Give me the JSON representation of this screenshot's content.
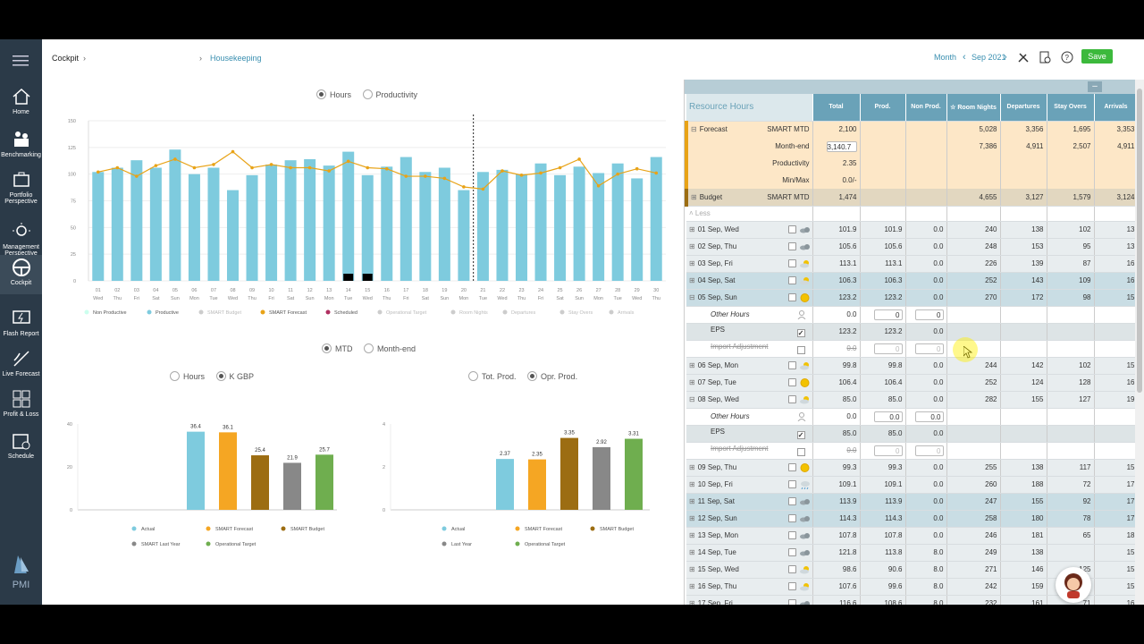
{
  "sidebar": {
    "items": [
      {
        "label": "Home",
        "icon": "home-icon"
      },
      {
        "label": "Benchmarking",
        "icon": "benchmarking-icon"
      },
      {
        "label": "Portfolio Perspective",
        "icon": "portfolio-icon"
      },
      {
        "label": "Management Perspective",
        "icon": "management-icon"
      },
      {
        "label": "Cockpit",
        "icon": "cockpit-icon"
      },
      {
        "label": "Flash Report",
        "icon": "flash-report-icon"
      },
      {
        "label": "Live Forecast",
        "icon": "live-forecast-icon"
      },
      {
        "label": "Profit & Loss",
        "icon": "profit-loss-icon"
      },
      {
        "label": "Schedule",
        "icon": "schedule-icon"
      }
    ],
    "brand": "PMI"
  },
  "breadcrumb": {
    "root": "Cockpit",
    "current": "Housekeeping"
  },
  "toolbar": {
    "period": "Month",
    "date": "Sep 2021",
    "save": "Save"
  },
  "main_chart": {
    "toggle": [
      "Hours",
      "Productivity"
    ],
    "selected": 0
  },
  "mtd_toggle": {
    "options": [
      "MTD",
      "Month-end"
    ],
    "selected": 0
  },
  "left_bar_toggle": {
    "options": [
      "Hours",
      "K GBP"
    ],
    "selected": 1
  },
  "right_bar_toggle": {
    "options": [
      "Tot. Prod.",
      "Opr. Prod."
    ],
    "selected": 1
  },
  "colors": {
    "productive": "#7ecbde",
    "forecast": "#e8a317",
    "scheduled": "#000000",
    "actual": "#7ecbde",
    "smart_forecast": "#f5a623",
    "smart_budget": "#9c6d12",
    "last_year": "#888888",
    "operational": "#6fae4f"
  },
  "chart_data": [
    {
      "type": "bar",
      "x_days": [
        "01",
        "02",
        "03",
        "04",
        "05",
        "06",
        "07",
        "08",
        "09",
        "10",
        "11",
        "12",
        "13",
        "14",
        "15",
        "16",
        "17",
        "18",
        "19",
        "20",
        "21",
        "22",
        "23",
        "24",
        "25",
        "26",
        "27",
        "28",
        "29",
        "30"
      ],
      "x_weekdays": [
        "Wed",
        "Thu",
        "Fri",
        "Sat",
        "Sun",
        "Mon",
        "Tue",
        "Wed",
        "Thu",
        "Fri",
        "Sat",
        "Sun",
        "Mon",
        "Tue",
        "Wed",
        "Thu",
        "Fri",
        "Sat",
        "Sun",
        "Mon",
        "Tue",
        "Wed",
        "Thu",
        "Fri",
        "Sat",
        "Sun",
        "Mon",
        "Tue",
        "Wed",
        "Thu"
      ],
      "yticks": [
        0,
        25,
        50,
        75,
        100,
        125,
        150
      ],
      "ylim": [
        0,
        150
      ],
      "series": [
        {
          "name": "Productive",
          "values": [
            102,
            106,
            113,
            106,
            123,
            100,
            106,
            85,
            99,
            109,
            113,
            114,
            108,
            121,
            99,
            107,
            116,
            102,
            106,
            85,
            102,
            104,
            100,
            110,
            99,
            107,
            101,
            110,
            96,
            116
          ]
        },
        {
          "name": "SMART Forecast",
          "values": [
            102,
            106,
            98,
            108,
            114,
            106,
            109,
            121,
            106,
            109,
            106,
            106,
            103,
            112,
            106,
            105,
            98,
            98,
            96,
            88,
            86,
            103,
            99,
            101,
            106,
            114,
            89,
            100,
            105,
            101
          ]
        },
        {
          "name": "Scheduled",
          "values": [
            0,
            0,
            0,
            0,
            0,
            0,
            0,
            0,
            0,
            0,
            0,
            0,
            0,
            8,
            8,
            0,
            0,
            0,
            0,
            0,
            0,
            0,
            0,
            0,
            0,
            0,
            0,
            0,
            0,
            0
          ]
        }
      ],
      "legend": [
        "Non Productive",
        "Productive",
        "SMART Budget",
        "SMART Forecast",
        "Scheduled",
        "Operational Target",
        "Room Nights",
        "Departures",
        "Stay Overs",
        "Arrivals"
      ]
    },
    {
      "type": "bar",
      "categories": [
        "Actual",
        "SMART Forecast",
        "SMART Budget",
        "SMART Last Year",
        "Operational Target"
      ],
      "values": [
        36.4,
        36.1,
        25.4,
        21.9,
        25.7
      ],
      "labels": [
        "36.4",
        "36.1",
        "25.4",
        "21.9",
        "25.7"
      ],
      "yticks": [
        0,
        20,
        40
      ],
      "ylim": [
        0,
        40
      ]
    },
    {
      "type": "bar",
      "categories": [
        "Actual",
        "SMART Forecast",
        "SMART Budget",
        "Last Year",
        "Operational Target"
      ],
      "values": [
        2.37,
        2.35,
        3.35,
        2.92,
        3.31
      ],
      "labels": [
        "2.37",
        "2.35",
        "3.35",
        "2.92",
        "3.31"
      ],
      "yticks": [
        0,
        2,
        4
      ],
      "ylim": [
        0,
        4
      ]
    }
  ],
  "table": {
    "title": "Resource Hours",
    "headers": [
      "Total",
      "Prod.",
      "Non Prod.",
      "Room Nights",
      "Departures",
      "Stay Overs",
      "Arrivals"
    ],
    "forecast": {
      "label": "Forecast",
      "rows": [
        [
          "SMART MTD",
          "2,100",
          "",
          "",
          "5,028",
          "3,356",
          "1,695",
          "3,353"
        ],
        [
          "Month-end",
          "3,140.7",
          "",
          "",
          "7,386",
          "4,911",
          "2,507",
          "4,911"
        ],
        [
          "Productivity",
          "2.35",
          "",
          "",
          "",
          "",
          "",
          ""
        ],
        [
          "Min/Max",
          "0.0/-",
          "",
          "",
          "",
          "",
          "",
          ""
        ]
      ]
    },
    "budget": {
      "label": "Budget",
      "sub": "SMART MTD",
      "vals": [
        "1,474",
        "",
        "",
        "4,655",
        "3,127",
        "1,579",
        "3,124"
      ]
    },
    "less": "Less",
    "rows": [
      {
        "k": "day",
        "d": "01 Sep, Wed",
        "v": [
          "101.9",
          "101.9",
          "0.0",
          "240",
          "138",
          "102",
          "13"
        ],
        "wx": "cloud"
      },
      {
        "k": "day",
        "d": "02 Sep, Thu",
        "v": [
          "105.6",
          "105.6",
          "0.0",
          "248",
          "153",
          "95",
          "13"
        ],
        "wx": "cloud"
      },
      {
        "k": "day",
        "d": "03 Sep, Fri",
        "v": [
          "113.1",
          "113.1",
          "0.0",
          "226",
          "139",
          "87",
          "16"
        ],
        "wx": "sun"
      },
      {
        "k": "we",
        "d": "04 Sep, Sat",
        "v": [
          "106.3",
          "106.3",
          "0.0",
          "252",
          "143",
          "109",
          "16"
        ],
        "wx": "sun"
      },
      {
        "k": "we",
        "d": "05 Sep, Sun",
        "v": [
          "123.2",
          "123.2",
          "0.0",
          "270",
          "172",
          "98",
          "15"
        ],
        "wx": "sunny",
        "open": true
      },
      {
        "k": "sub",
        "d": "Other Hours",
        "v": [
          "0.0",
          "0",
          "0",
          "",
          "",
          "",
          ""
        ],
        "t": "oh"
      },
      {
        "k": "sub2",
        "d": "EPS",
        "v": [
          "123.2",
          "123.2",
          "0.0",
          "",
          "",
          "",
          ""
        ],
        "t": "eps"
      },
      {
        "k": "sub",
        "d": "Import Adjustment",
        "v": [
          "0.0",
          "0",
          "0",
          "",
          "",
          "",
          ""
        ],
        "t": "ia"
      },
      {
        "k": "day",
        "d": "06 Sep, Mon",
        "v": [
          "99.8",
          "99.8",
          "0.0",
          "244",
          "142",
          "102",
          "15"
        ],
        "wx": "sun"
      },
      {
        "k": "day",
        "d": "07 Sep, Tue",
        "v": [
          "106.4",
          "106.4",
          "0.0",
          "252",
          "124",
          "128",
          "16"
        ],
        "wx": "sunny"
      },
      {
        "k": "day",
        "d": "08 Sep, Wed",
        "v": [
          "85.0",
          "85.0",
          "0.0",
          "282",
          "155",
          "127",
          "19"
        ],
        "wx": "sun",
        "open": true
      },
      {
        "k": "sub",
        "d": "Other Hours",
        "v": [
          "0.0",
          "0.0",
          "0.0",
          "",
          "",
          "",
          ""
        ],
        "t": "oh"
      },
      {
        "k": "sub2",
        "d": "EPS",
        "v": [
          "85.0",
          "85.0",
          "0.0",
          "",
          "",
          "",
          ""
        ],
        "t": "eps"
      },
      {
        "k": "sub",
        "d": "Import Adjustment",
        "v": [
          "0.0",
          "0",
          "0",
          "",
          "",
          "",
          ""
        ],
        "t": "ia"
      },
      {
        "k": "day",
        "d": "09 Sep, Thu",
        "v": [
          "99.3",
          "99.3",
          "0.0",
          "255",
          "138",
          "117",
          "15"
        ],
        "wx": "sunny"
      },
      {
        "k": "day",
        "d": "10 Sep, Fri",
        "v": [
          "109.1",
          "109.1",
          "0.0",
          "260",
          "188",
          "72",
          "17"
        ],
        "wx": "rain"
      },
      {
        "k": "we",
        "d": "11 Sep, Sat",
        "v": [
          "113.9",
          "113.9",
          "0.0",
          "247",
          "155",
          "92",
          "17"
        ],
        "wx": "cloud"
      },
      {
        "k": "we",
        "d": "12 Sep, Sun",
        "v": [
          "114.3",
          "114.3",
          "0.0",
          "258",
          "180",
          "78",
          "17"
        ],
        "wx": "cloud"
      },
      {
        "k": "day",
        "d": "13 Sep, Mon",
        "v": [
          "107.8",
          "107.8",
          "0.0",
          "246",
          "181",
          "65",
          "18"
        ],
        "wx": "cloud"
      },
      {
        "k": "day",
        "d": "14 Sep, Tue",
        "v": [
          "121.8",
          "113.8",
          "8.0",
          "249",
          "138",
          "",
          "15"
        ],
        "wx": "cloud"
      },
      {
        "k": "day",
        "d": "15 Sep, Wed",
        "v": [
          "98.6",
          "90.6",
          "8.0",
          "271",
          "146",
          "125",
          "15"
        ],
        "wx": "sun"
      },
      {
        "k": "day",
        "d": "16 Sep, Thu",
        "v": [
          "107.6",
          "99.6",
          "8.0",
          "242",
          "159",
          "83",
          "15"
        ],
        "wx": "sun"
      },
      {
        "k": "day",
        "d": "17 Sep, Fri",
        "v": [
          "116.6",
          "108.6",
          "8.0",
          "232",
          "161",
          "71",
          "16"
        ],
        "wx": "cloud"
      }
    ]
  }
}
